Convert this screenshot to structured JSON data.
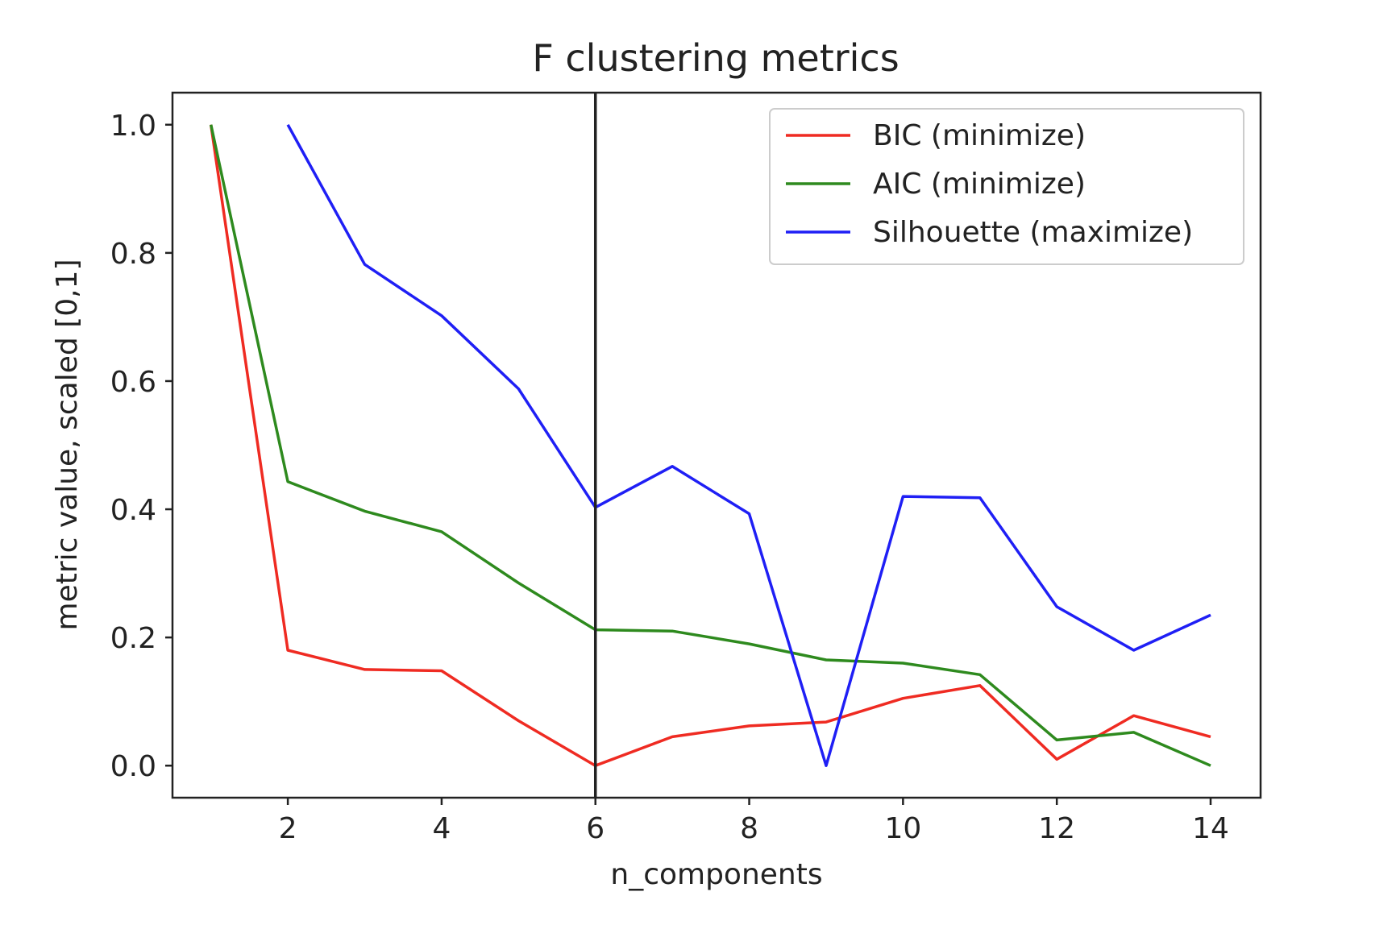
{
  "chart_data": {
    "type": "line",
    "title": "F clustering metrics",
    "xlabel": "n_components",
    "ylabel": "metric value, scaled [0,1]",
    "xlim": [
      0.5,
      14.65
    ],
    "ylim": [
      -0.05,
      1.05
    ],
    "xticks": [
      2,
      4,
      6,
      8,
      10,
      12,
      14
    ],
    "yticks": [
      0.0,
      0.2,
      0.4,
      0.6,
      0.8,
      1.0
    ],
    "ytick_labels": [
      "0.0",
      "0.2",
      "0.4",
      "0.6",
      "0.8",
      "1.0"
    ],
    "grid": false,
    "legend_position": "top-right",
    "vline": {
      "x": 6,
      "color": "#222222"
    },
    "series": [
      {
        "name": "BIC (minimize)",
        "color": "#ef2b22",
        "x": [
          1,
          2,
          3,
          4,
          5,
          6,
          7,
          8,
          9,
          10,
          11,
          12,
          13,
          14
        ],
        "values": [
          1.0,
          0.18,
          0.15,
          0.148,
          0.07,
          0.0,
          0.045,
          0.062,
          0.068,
          0.105,
          0.125,
          0.01,
          0.078,
          0.045
        ]
      },
      {
        "name": "AIC (minimize)",
        "color": "#2e8a1e",
        "x": [
          1,
          2,
          3,
          4,
          5,
          6,
          7,
          8,
          9,
          10,
          11,
          12,
          13,
          14
        ],
        "values": [
          1.0,
          0.443,
          0.397,
          0.365,
          0.285,
          0.212,
          0.21,
          0.19,
          0.165,
          0.16,
          0.142,
          0.04,
          0.052,
          0.0
        ]
      },
      {
        "name": "Silhouette (maximize)",
        "color": "#1f1ff5",
        "x": [
          2,
          3,
          4,
          5,
          6,
          7,
          8,
          9,
          10,
          11,
          12,
          13,
          14
        ],
        "values": [
          1.0,
          0.782,
          0.702,
          0.588,
          0.403,
          0.467,
          0.393,
          0.0,
          0.42,
          0.418,
          0.248,
          0.18,
          0.235
        ]
      }
    ]
  }
}
